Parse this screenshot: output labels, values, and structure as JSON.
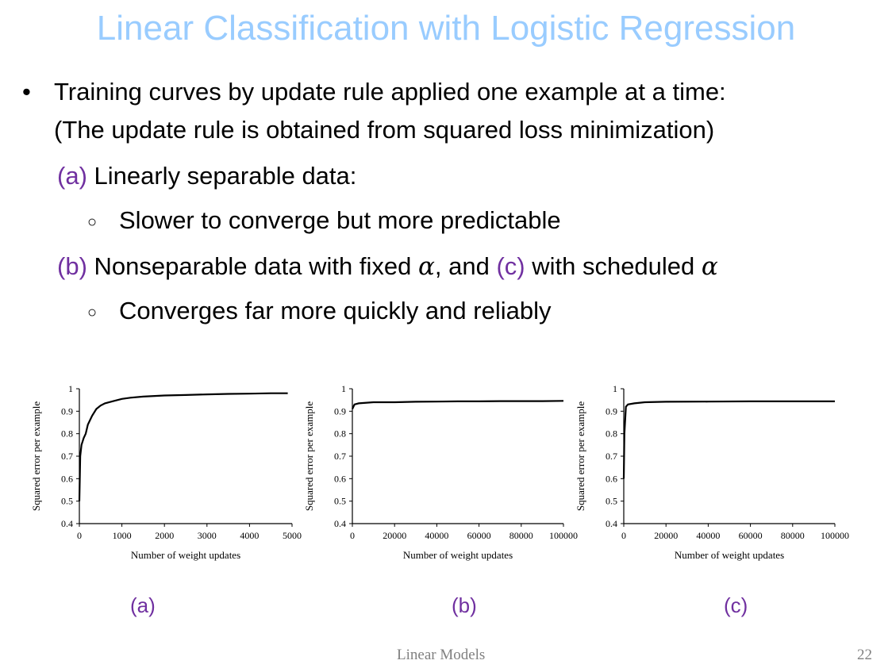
{
  "slide": {
    "title": "Linear Classification with Logistic Regression",
    "bullet_main_1": "Training curves by update rule applied one example at a time:",
    "bullet_main_2": "(The update rule is obtained from squared loss minimization)",
    "item_a_letter": "(a)",
    "item_a_text": " Linearly separable data:",
    "item_a_sub": "Slower to converge but more predictable",
    "item_b_letter": "(b)",
    "item_b_text_1": " Nonseparable data with fixed ",
    "alpha_symbol": "α",
    "item_b_text_2": ", and ",
    "item_c_letter": "(c)",
    "item_c_text": " with scheduled ",
    "item_bc_sub": "Converges far more quickly and reliably",
    "bullet_symbol": "•",
    "sub_bullet_symbol": "○",
    "accent_color": "#7030A0",
    "title_color": "#99CCFF"
  },
  "captions": [
    "(a)",
    "(b)",
    "(c)"
  ],
  "footer": {
    "center": "Linear Models",
    "page_number": "22"
  },
  "chart_data": [
    {
      "type": "line",
      "xlabel": "Number of weight updates",
      "ylabel": "Squared error per example",
      "xlim": [
        0,
        5000
      ],
      "ylim": [
        0.4,
        1
      ],
      "xticks": [
        0,
        1000,
        2000,
        3000,
        4000,
        5000
      ],
      "yticks": [
        0.4,
        0.5,
        0.6,
        0.7,
        0.8,
        0.9,
        1
      ],
      "ytick_labels": [
        "0.4",
        "0.5",
        "0.6",
        "0.7",
        "0.8",
        "0.9",
        "1"
      ],
      "series": [
        {
          "x": [
            0,
            20,
            50,
            100,
            150,
            200,
            300,
            400,
            500,
            600,
            800,
            1000,
            1200,
            1500,
            2000,
            2500,
            3000,
            3500,
            4000,
            4500,
            4900
          ],
          "y": [
            0.5,
            0.7,
            0.75,
            0.78,
            0.8,
            0.84,
            0.88,
            0.91,
            0.925,
            0.935,
            0.945,
            0.955,
            0.96,
            0.965,
            0.97,
            0.972,
            0.975,
            0.977,
            0.978,
            0.98,
            0.98
          ]
        }
      ]
    },
    {
      "type": "line",
      "xlabel": "Number of weight updates",
      "ylabel": "Squared error per example",
      "xlim": [
        0,
        100000
      ],
      "ylim": [
        0.4,
        1
      ],
      "xticks": [
        0,
        20000,
        40000,
        60000,
        80000,
        100000
      ],
      "yticks": [
        0.4,
        0.5,
        0.6,
        0.7,
        0.8,
        0.9,
        1
      ],
      "ytick_labels": [
        "0.4",
        "0.5",
        "0.6",
        "0.7",
        "0.8",
        "0.9",
        "1"
      ],
      "series": [
        {
          "x": [
            0,
            1000,
            3000,
            10000,
            20000,
            30000,
            40000,
            50000,
            60000,
            70000,
            80000,
            90000,
            100000
          ],
          "y": [
            0.91,
            0.93,
            0.935,
            0.94,
            0.94,
            0.942,
            0.943,
            0.944,
            0.944,
            0.945,
            0.945,
            0.945,
            0.946
          ]
        }
      ]
    },
    {
      "type": "line",
      "xlabel": "Number of weight updates",
      "ylabel": "Squared error per example",
      "xlim": [
        0,
        100000
      ],
      "ylim": [
        0.4,
        1
      ],
      "xticks": [
        0,
        20000,
        40000,
        60000,
        80000,
        100000
      ],
      "yticks": [
        0.4,
        0.5,
        0.6,
        0.7,
        0.8,
        0.9,
        1
      ],
      "ytick_labels": [
        "0.4",
        "0.5",
        "0.6",
        "0.7",
        "0.8",
        "0.9",
        "1"
      ],
      "series": [
        {
          "x": [
            0,
            300,
            1000,
            2000,
            5000,
            10000,
            20000,
            40000,
            60000,
            80000,
            100000
          ],
          "y": [
            0.6,
            0.8,
            0.92,
            0.93,
            0.935,
            0.94,
            0.942,
            0.943,
            0.944,
            0.944,
            0.944
          ]
        }
      ]
    }
  ]
}
